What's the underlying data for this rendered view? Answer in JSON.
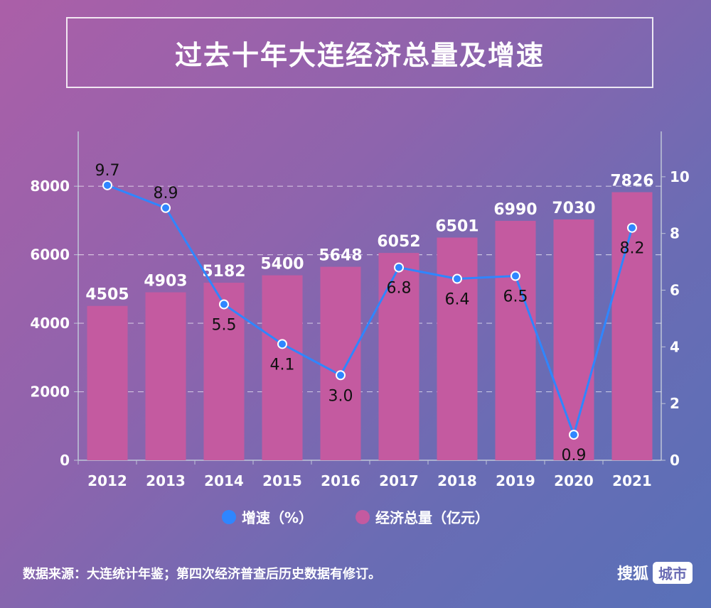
{
  "title": "过去十年大连经济总量及增速",
  "legend": {
    "growth_label": "增速（%）",
    "total_label": "经济总量（亿元）"
  },
  "source": "数据来源：大连统计年鉴；第四次经济普查后历史数据有修订。",
  "logo": {
    "text": "搜狐",
    "box": "城市"
  },
  "colors": {
    "bar": "#c45aa0",
    "line": "#2f86ff",
    "grid": "#ffffff"
  },
  "chart_data": {
    "type": "bar",
    "categories": [
      "2012",
      "2013",
      "2014",
      "2015",
      "2016",
      "2017",
      "2018",
      "2019",
      "2020",
      "2021"
    ],
    "series": [
      {
        "name": "经济总量（亿元）",
        "type": "bar",
        "axis": "left",
        "values": [
          4505,
          4903,
          5182,
          5400,
          5648,
          6052,
          6501,
          6990,
          7030,
          7826
        ]
      },
      {
        "name": "增速（%）",
        "type": "line",
        "axis": "right",
        "values": [
          9.7,
          8.9,
          5.5,
          4.1,
          3.0,
          6.8,
          6.4,
          6.5,
          0.9,
          8.2
        ],
        "labels": [
          "9.7",
          "8.9",
          "5.5",
          "4.1",
          "3.0",
          "6.8",
          "6.4",
          "6.5",
          "0.9",
          "8.2"
        ]
      }
    ],
    "y_left": {
      "ticks": [
        0,
        2000,
        4000,
        6000,
        8000
      ],
      "range": [
        0,
        9600
      ]
    },
    "y_right": {
      "ticks": [
        0,
        2,
        4,
        6,
        8,
        10
      ],
      "range": [
        0,
        11.6
      ]
    },
    "grid": true
  }
}
